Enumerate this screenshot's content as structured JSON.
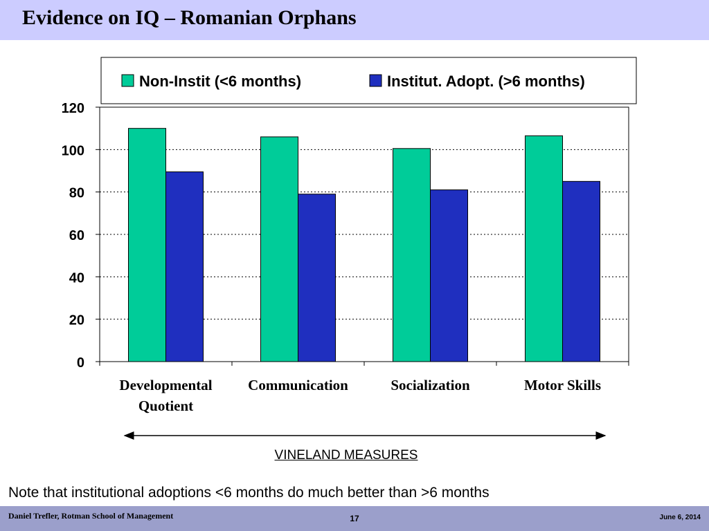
{
  "slide": {
    "title": "Evidence on IQ – Romanian Orphans",
    "note": "Note that institutional adoptions <6 months do much better than >6 months",
    "footer_left": "Daniel Trefler, Rotman School of Management",
    "page_number": "17",
    "footer_date": "June 6, 2014"
  },
  "colors": {
    "title_band": "#ccccff",
    "footer_band": "#9b9fcb",
    "series_1": "#00cc99",
    "series_2": "#1f2fbf"
  },
  "chart_data": {
    "type": "bar",
    "categories": [
      "Developmental\nQuotient",
      "Communication",
      "Socialization",
      "Motor Skills"
    ],
    "series": [
      {
        "name": "Non-Instit (<6 months)",
        "values": [
          110,
          106,
          100.5,
          106.5
        ],
        "color": "#00cc99"
      },
      {
        "name": "Institut. Adopt. (>6 months)",
        "values": [
          89.5,
          79,
          81,
          85
        ],
        "color": "#1f2fbf"
      }
    ],
    "ylim": [
      0,
      120
    ],
    "yticks": [
      "0",
      "20",
      "40",
      "60",
      "80",
      "100",
      "120"
    ],
    "xlabel": "VINELAND MEASURES",
    "ylabel": "",
    "grid": true,
    "legend": "top"
  }
}
